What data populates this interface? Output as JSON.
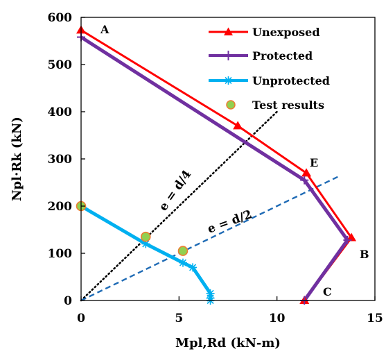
{
  "chart_data": {
    "type": "line",
    "xlabel": "Mpl,Rd (kN-m)",
    "ylabel": "Npl·Rk (kN)",
    "xlim": [
      0,
      15
    ],
    "ylim": [
      0,
      600
    ],
    "x_ticks": [
      "0",
      "5",
      "10",
      "15"
    ],
    "y_ticks": [
      "0",
      "100",
      "200",
      "300",
      "400",
      "500",
      "600"
    ],
    "grid": false,
    "legend_position": "top-right",
    "series": [
      {
        "name": "Unexposed",
        "color": "#ff0000",
        "marker": "triangle",
        "points": [
          [
            0,
            573
          ],
          [
            8.0,
            370
          ],
          [
            11.5,
            270
          ],
          [
            13.8,
            133
          ],
          [
            11.4,
            0
          ]
        ]
      },
      {
        "name": "Protected",
        "color": "#7030a0",
        "marker": "plus",
        "points": [
          [
            0,
            558
          ],
          [
            11.4,
            255
          ],
          [
            13.6,
            128
          ],
          [
            11.4,
            0
          ]
        ]
      },
      {
        "name": "Unprotected",
        "color": "#00b0f0",
        "marker": "star",
        "points": [
          [
            0,
            200
          ],
          [
            3.3,
            120
          ],
          [
            5.2,
            80
          ],
          [
            5.7,
            70
          ],
          [
            6.6,
            15
          ],
          [
            6.6,
            5
          ],
          [
            6.6,
            0
          ]
        ]
      },
      {
        "name": "Test results",
        "color": "#70ad47",
        "marker": "circle",
        "points": [
          [
            0,
            200
          ],
          [
            3.3,
            135
          ],
          [
            5.2,
            105
          ]
        ]
      }
    ],
    "reference_lines": [
      {
        "label": "e = d/4",
        "color": "#000000",
        "style": "dotted",
        "from": [
          0,
          0
        ],
        "to": [
          10.0,
          400
        ]
      },
      {
        "label": "e = d/2",
        "color": "#1f6bb5",
        "style": "dashed",
        "from": [
          0,
          0
        ],
        "to": [
          13.1,
          262
        ]
      }
    ],
    "point_labels": [
      "A",
      "B",
      "C",
      "E"
    ]
  }
}
